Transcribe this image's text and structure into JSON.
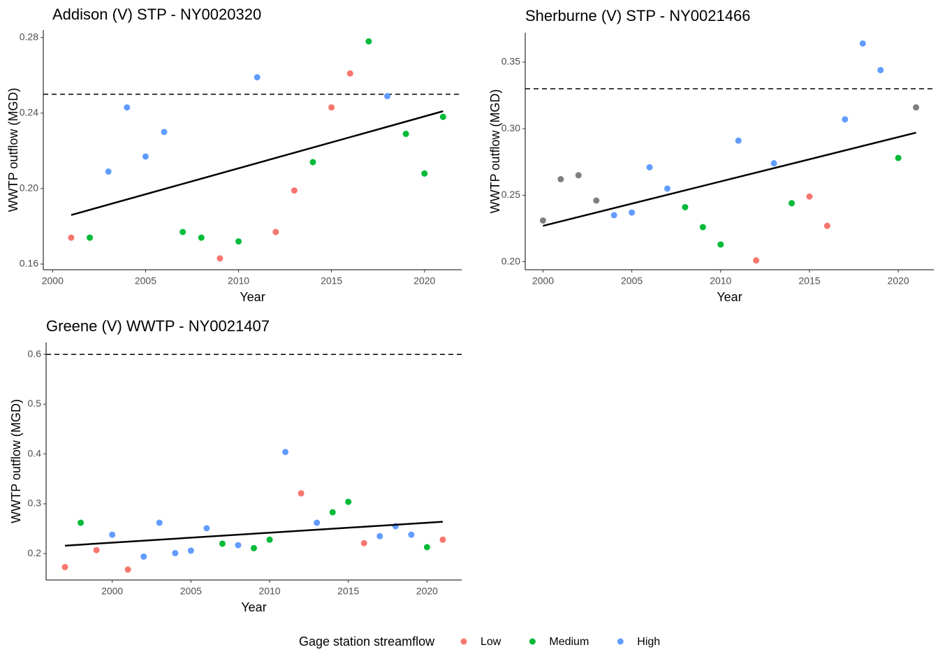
{
  "chart_data": [
    {
      "type": "scatter",
      "title": "Addison (V) STP - NY0020320",
      "x_label": "Year",
      "y_label": "WWTP outflow (MGD)",
      "xlim": [
        1999.5,
        2022
      ],
      "ylim": [
        0.157,
        0.284
      ],
      "xticks": [
        2000,
        2005,
        2010,
        2015,
        2020
      ],
      "yticks": [
        0.16,
        {
          "value": 0.2,
          "label": "0.20"
        },
        0.24,
        0.28
      ],
      "threshold": 0.25,
      "trend": {
        "x": [
          2001,
          2021
        ],
        "values": [
          0.186,
          0.241
        ]
      },
      "series": [
        {
          "name": "Low",
          "color": "#F8766D",
          "x": [
            2001,
            2009,
            2012,
            2013,
            2015,
            2016
          ],
          "values": [
            0.174,
            0.163,
            0.177,
            0.199,
            0.243,
            0.261
          ]
        },
        {
          "name": "Medium",
          "color": "#00BA38",
          "x": [
            2002,
            2007,
            2008,
            2010,
            2014,
            2017,
            2019,
            2020,
            2021
          ],
          "values": [
            0.174,
            0.177,
            0.174,
            0.172,
            0.214,
            0.278,
            0.229,
            0.208,
            0.238
          ]
        },
        {
          "name": "High",
          "color": "#619CFF",
          "x": [
            2003,
            2004,
            2005,
            2006,
            2011,
            2018
          ],
          "values": [
            0.209,
            0.243,
            0.217,
            0.23,
            0.259,
            0.249
          ]
        }
      ]
    },
    {
      "type": "scatter",
      "title": "Sherburne (V) STP - NY0021466",
      "x_label": "Year",
      "y_label": "WWTP outflow (MGD)",
      "xlim": [
        1999,
        2022
      ],
      "ylim": [
        0.194,
        0.372
      ],
      "xticks": [
        2000,
        2005,
        2010,
        2015,
        2020
      ],
      "yticks": [
        {
          "value": 0.2,
          "label": "0.20"
        },
        0.25,
        {
          "value": 0.3,
          "label": "0.30"
        },
        0.35
      ],
      "threshold": 0.33,
      "trend": {
        "x": [
          2000,
          2021
        ],
        "values": [
          0.227,
          0.297
        ]
      },
      "series": [
        {
          "color": "#7F7F7F",
          "x": [
            2000,
            2001,
            2002,
            2003,
            2021
          ],
          "values": [
            0.231,
            0.262,
            0.265,
            0.246,
            0.316
          ]
        },
        {
          "name": "Low",
          "color": "#F8766D",
          "x": [
            2012,
            2015,
            2016
          ],
          "values": [
            0.201,
            0.249,
            0.227
          ]
        },
        {
          "name": "Medium",
          "color": "#00BA38",
          "x": [
            2008,
            2009,
            2010,
            2014,
            2020
          ],
          "values": [
            0.241,
            0.226,
            0.213,
            0.244,
            0.278
          ]
        },
        {
          "name": "High",
          "color": "#619CFF",
          "x": [
            2004,
            2005,
            2006,
            2007,
            2011,
            2013,
            2017,
            2018,
            2019
          ],
          "values": [
            0.235,
            0.237,
            0.271,
            0.255,
            0.291,
            0.274,
            0.307,
            0.364,
            0.344
          ]
        }
      ]
    },
    {
      "type": "scatter",
      "title": "Greene (V) WWTP - NY0021407",
      "x_label": "Year",
      "y_label": "WWTP outflow (MGD)",
      "xlim": [
        1995.8,
        2022.2
      ],
      "ylim": [
        0.147,
        0.624
      ],
      "xticks": [
        2000,
        2005,
        2010,
        2015,
        2020
      ],
      "yticks": [
        0.2,
        0.3,
        0.4,
        0.5,
        0.6
      ],
      "threshold": 0.6,
      "trend": {
        "x": [
          1997,
          2021
        ],
        "values": [
          0.216,
          0.264
        ]
      },
      "series": [
        {
          "name": "Low",
          "color": "#F8766D",
          "x": [
            1997,
            1999,
            2001,
            2012,
            2016,
            2021
          ],
          "values": [
            0.173,
            0.207,
            0.168,
            0.321,
            0.221,
            0.228
          ]
        },
        {
          "name": "Medium",
          "color": "#00BA38",
          "x": [
            1998,
            2007,
            2009,
            2010,
            2014,
            2015,
            2020
          ],
          "values": [
            0.262,
            0.22,
            0.211,
            0.228,
            0.283,
            0.304,
            0.213
          ]
        },
        {
          "name": "High",
          "color": "#619CFF",
          "x": [
            2000,
            2002,
            2003,
            2004,
            2005,
            2006,
            2008,
            2011,
            2013,
            2017,
            2018,
            2019
          ],
          "values": [
            0.238,
            0.194,
            0.262,
            0.201,
            0.206,
            0.251,
            0.217,
            0.404,
            0.262,
            0.235,
            0.255,
            0.238
          ]
        }
      ]
    }
  ],
  "legend_title": "Gage station streamflow"
}
